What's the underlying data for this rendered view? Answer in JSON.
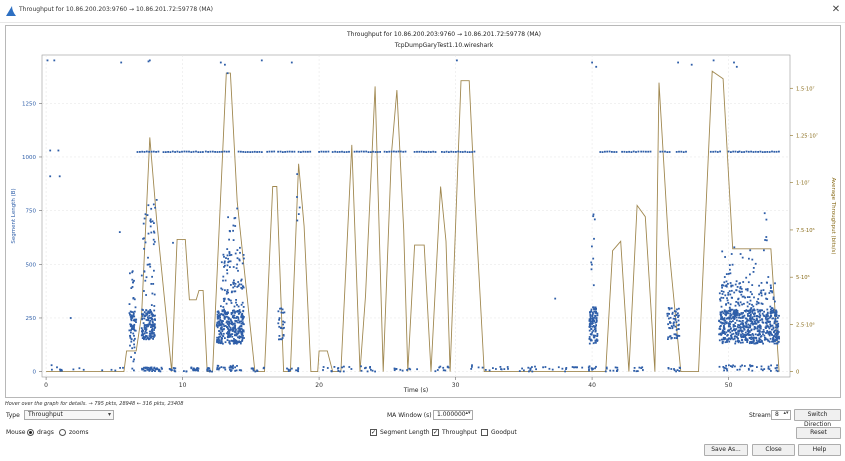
{
  "window": {
    "title": "Throughput for 10.86.200.203:9760 → 10.86.201.72:59778 (MA)",
    "close_glyph": "✕"
  },
  "chart_data": {
    "type": "scatter",
    "title": "Throughput for 10.86.200.203:9760 → 10.86.201.72:59778 (MA)",
    "subtitle": "TcpDumpGaryTest1.10.wireshark",
    "xlabel": "Time (s)",
    "ylabel_left": "Segment Length (B)",
    "ylabel_right": "Average Throughput (bits/s)",
    "xlim": [
      -0.3,
      54.5
    ],
    "ylim_left": [
      -25,
      1475
    ],
    "ylim_right": [
      -284000,
      16760000
    ],
    "x_ticks": [
      "0",
      "10",
      "20",
      "30",
      "40",
      "50"
    ],
    "y_left_ticks": [
      "0",
      "250",
      "500",
      "750",
      "1000",
      "1250"
    ],
    "y_right_ticks": [
      "0",
      "2.5·10⁶",
      "5·10⁶",
      "7.5·10⁶",
      "1·10⁷",
      "1.25·10⁷",
      "1.5·10⁷"
    ],
    "grid": true,
    "colors": {
      "segment": "#2e5ea8",
      "throughput": "#a08850",
      "right_axis": "#8a6d1c"
    },
    "series": [
      {
        "name": "Segment Length",
        "style": "points",
        "bands": [
          [
            0.2,
            1.5,
            2,
            10,
            6
          ],
          [
            1.5,
            6,
            2,
            20,
            8
          ],
          [
            6.1,
            6.6,
            3,
            490,
            40
          ],
          [
            6.1,
            6.6,
            150,
            280,
            40
          ],
          [
            7.0,
            8.0,
            2,
            20,
            30
          ],
          [
            7.0,
            8.0,
            150,
            290,
            140
          ],
          [
            7.0,
            8.0,
            300,
            780,
            45
          ],
          [
            8.0,
            8.5,
            0,
            20,
            10
          ],
          [
            9.0,
            9.5,
            0,
            20,
            10
          ],
          [
            10.0,
            11.2,
            0,
            20,
            20
          ],
          [
            11.8,
            12.2,
            0,
            20,
            10
          ],
          [
            12.5,
            14.5,
            2,
            30,
            30
          ],
          [
            12.5,
            14.5,
            130,
            290,
            320
          ],
          [
            12.8,
            14.5,
            300,
            580,
            90
          ],
          [
            13.2,
            14.0,
            600,
            720,
            10
          ],
          [
            15.0,
            16.0,
            0,
            20,
            10
          ],
          [
            17.0,
            17.5,
            150,
            300,
            25
          ],
          [
            17.5,
            18.5,
            0,
            20,
            10
          ],
          [
            18.3,
            18.6,
            700,
            820,
            4
          ],
          [
            20.0,
            22.5,
            0,
            25,
            15
          ],
          [
            23.0,
            24.5,
            0,
            25,
            10
          ],
          [
            25.5,
            27.5,
            0,
            25,
            10
          ],
          [
            28.5,
            29.5,
            0,
            25,
            10
          ],
          [
            31.0,
            39.5,
            0,
            25,
            40
          ],
          [
            39.7,
            40.4,
            2,
            30,
            10
          ],
          [
            39.8,
            40.4,
            130,
            300,
            110
          ],
          [
            39.9,
            40.3,
            400,
            740,
            10
          ],
          [
            41.0,
            42.0,
            0,
            20,
            10
          ],
          [
            43.0,
            44.0,
            0,
            20,
            8
          ],
          [
            45.5,
            46.5,
            0,
            20,
            10
          ],
          [
            45.5,
            46.4,
            150,
            300,
            60
          ],
          [
            49.3,
            53.7,
            2,
            30,
            40
          ],
          [
            49.3,
            53.7,
            130,
            290,
            600
          ],
          [
            49.3,
            53.5,
            290,
            420,
            120
          ],
          [
            49.5,
            53.0,
            420,
            580,
            25
          ],
          [
            52.4,
            52.8,
            580,
            740,
            5
          ]
        ],
        "rows_1024": [
          [
            6.7,
            8.3
          ],
          [
            8.6,
            11.5
          ],
          [
            11.7,
            13.4
          ],
          [
            14.1,
            15.9
          ],
          [
            16.2,
            16.8
          ],
          [
            17.0,
            18.2
          ],
          [
            18.5,
            19.5
          ],
          [
            20.0,
            20.7
          ],
          [
            21.0,
            22.3
          ],
          [
            22.6,
            24.5
          ],
          [
            24.8,
            26.5
          ],
          [
            27.0,
            28.7
          ],
          [
            29.0,
            31.5
          ],
          [
            40.6,
            41.8
          ],
          [
            42.2,
            43.4
          ],
          [
            43.6,
            44.3
          ],
          [
            45.0,
            45.8
          ],
          [
            46.2,
            47.0
          ],
          [
            48.7,
            49.5
          ],
          [
            50.0,
            50.8
          ],
          [
            50.8,
            53.8
          ]
        ],
        "scattered_points": [
          [
            0.1,
            1450
          ],
          [
            0.6,
            1450
          ],
          [
            0.3,
            1030
          ],
          [
            0.3,
            910
          ],
          [
            1.0,
            910
          ],
          [
            0.9,
            1030
          ],
          [
            0.4,
            30
          ],
          [
            0.8,
            20
          ],
          [
            1.8,
            250
          ],
          [
            5.5,
            1440
          ],
          [
            5.4,
            650
          ],
          [
            7.5,
            1445
          ],
          [
            7.6,
            1450
          ],
          [
            8.1,
            800
          ],
          [
            12.8,
            1440
          ],
          [
            13.1,
            1430
          ],
          [
            13.3,
            1390
          ],
          [
            14.0,
            760
          ],
          [
            15.8,
            1450
          ],
          [
            18.0,
            1440
          ],
          [
            18.4,
            920
          ],
          [
            30.1,
            1450
          ],
          [
            40.0,
            1440
          ],
          [
            40.3,
            1420
          ],
          [
            46.3,
            1440
          ],
          [
            47.3,
            1430
          ],
          [
            48.9,
            1450
          ],
          [
            50.4,
            1440
          ],
          [
            50.6,
            1420
          ],
          [
            37.3,
            340
          ],
          [
            9.3,
            600
          ],
          [
            31.2,
            30
          ],
          [
            38.9,
            20
          ]
        ]
      },
      {
        "name": "Throughput",
        "style": "line",
        "points": [
          [
            0,
            0
          ],
          [
            5.7,
            0
          ],
          [
            5.9,
            1100000
          ],
          [
            6.6,
            1100000
          ],
          [
            7.0,
            3000000
          ],
          [
            7.6,
            12400000
          ],
          [
            8.1,
            8000000
          ],
          [
            9.2,
            0
          ],
          [
            9.6,
            7000000
          ],
          [
            10.2,
            7000000
          ],
          [
            10.5,
            3800000
          ],
          [
            11.0,
            3800000
          ],
          [
            11.2,
            4300000
          ],
          [
            11.5,
            4300000
          ],
          [
            11.8,
            0
          ],
          [
            12.2,
            0
          ],
          [
            13.2,
            15800000
          ],
          [
            13.5,
            15800000
          ],
          [
            14.0,
            9000000
          ],
          [
            15.3,
            0
          ],
          [
            16.0,
            0
          ],
          [
            16.6,
            9800000
          ],
          [
            16.9,
            9800000
          ],
          [
            17.4,
            0
          ],
          [
            17.9,
            0
          ],
          [
            18.5,
            11000000
          ],
          [
            18.9,
            7700000
          ],
          [
            19.4,
            0
          ],
          [
            19.9,
            0
          ],
          [
            20.0,
            1100000
          ],
          [
            20.6,
            1100000
          ],
          [
            21.0,
            0
          ],
          [
            21.6,
            0
          ],
          [
            22.4,
            12000000
          ],
          [
            23.0,
            0
          ],
          [
            23.4,
            4000000
          ],
          [
            24.1,
            15100000
          ],
          [
            24.7,
            0
          ],
          [
            25.3,
            11500000
          ],
          [
            25.7,
            14900000
          ],
          [
            26.2,
            7500000
          ],
          [
            26.5,
            0
          ],
          [
            27.0,
            6700000
          ],
          [
            27.7,
            6700000
          ],
          [
            28.2,
            0
          ],
          [
            28.9,
            9800000
          ],
          [
            29.3,
            6900000
          ],
          [
            29.6,
            0
          ],
          [
            30.4,
            15400000
          ],
          [
            31.0,
            15400000
          ],
          [
            31.4,
            9300000
          ],
          [
            32.1,
            0
          ],
          [
            41.0,
            0
          ],
          [
            41.5,
            6400000
          ],
          [
            42.1,
            6900000
          ],
          [
            42.7,
            0
          ],
          [
            43.3,
            8800000
          ],
          [
            43.9,
            8200000
          ],
          [
            44.6,
            0
          ],
          [
            44.9,
            15300000
          ],
          [
            45.6,
            6800000
          ],
          [
            46.5,
            0
          ],
          [
            47.8,
            0
          ],
          [
            48.8,
            15900000
          ],
          [
            49.6,
            15500000
          ],
          [
            50.3,
            6500000
          ],
          [
            53.1,
            6500000
          ],
          [
            53.7,
            0
          ]
        ]
      }
    ]
  },
  "status": {
    "hint": "Hover over the graph for details. → 795 pkts, 28948 ← 316 pkts, 23408"
  },
  "controls": {
    "type_label": "Type",
    "type_value": "Throughput",
    "mouse_label": "Mouse",
    "mouse_drags": "drags",
    "mouse_zooms": "zooms",
    "ma_window_label": "MA Window (s)",
    "ma_window_value": "1.000000",
    "segment_length_label": "Segment Length",
    "throughput_label": "Throughput",
    "goodput_label": "Goodput",
    "stream_label": "Stream",
    "stream_value": "8",
    "switch_direction": "Switch Direction",
    "reset": "Reset",
    "save_as": "Save As...",
    "close": "Close",
    "help": "Help",
    "check_glyph": "✓",
    "spin_glyph": "▴▾",
    "combo_glyph": "▾"
  }
}
